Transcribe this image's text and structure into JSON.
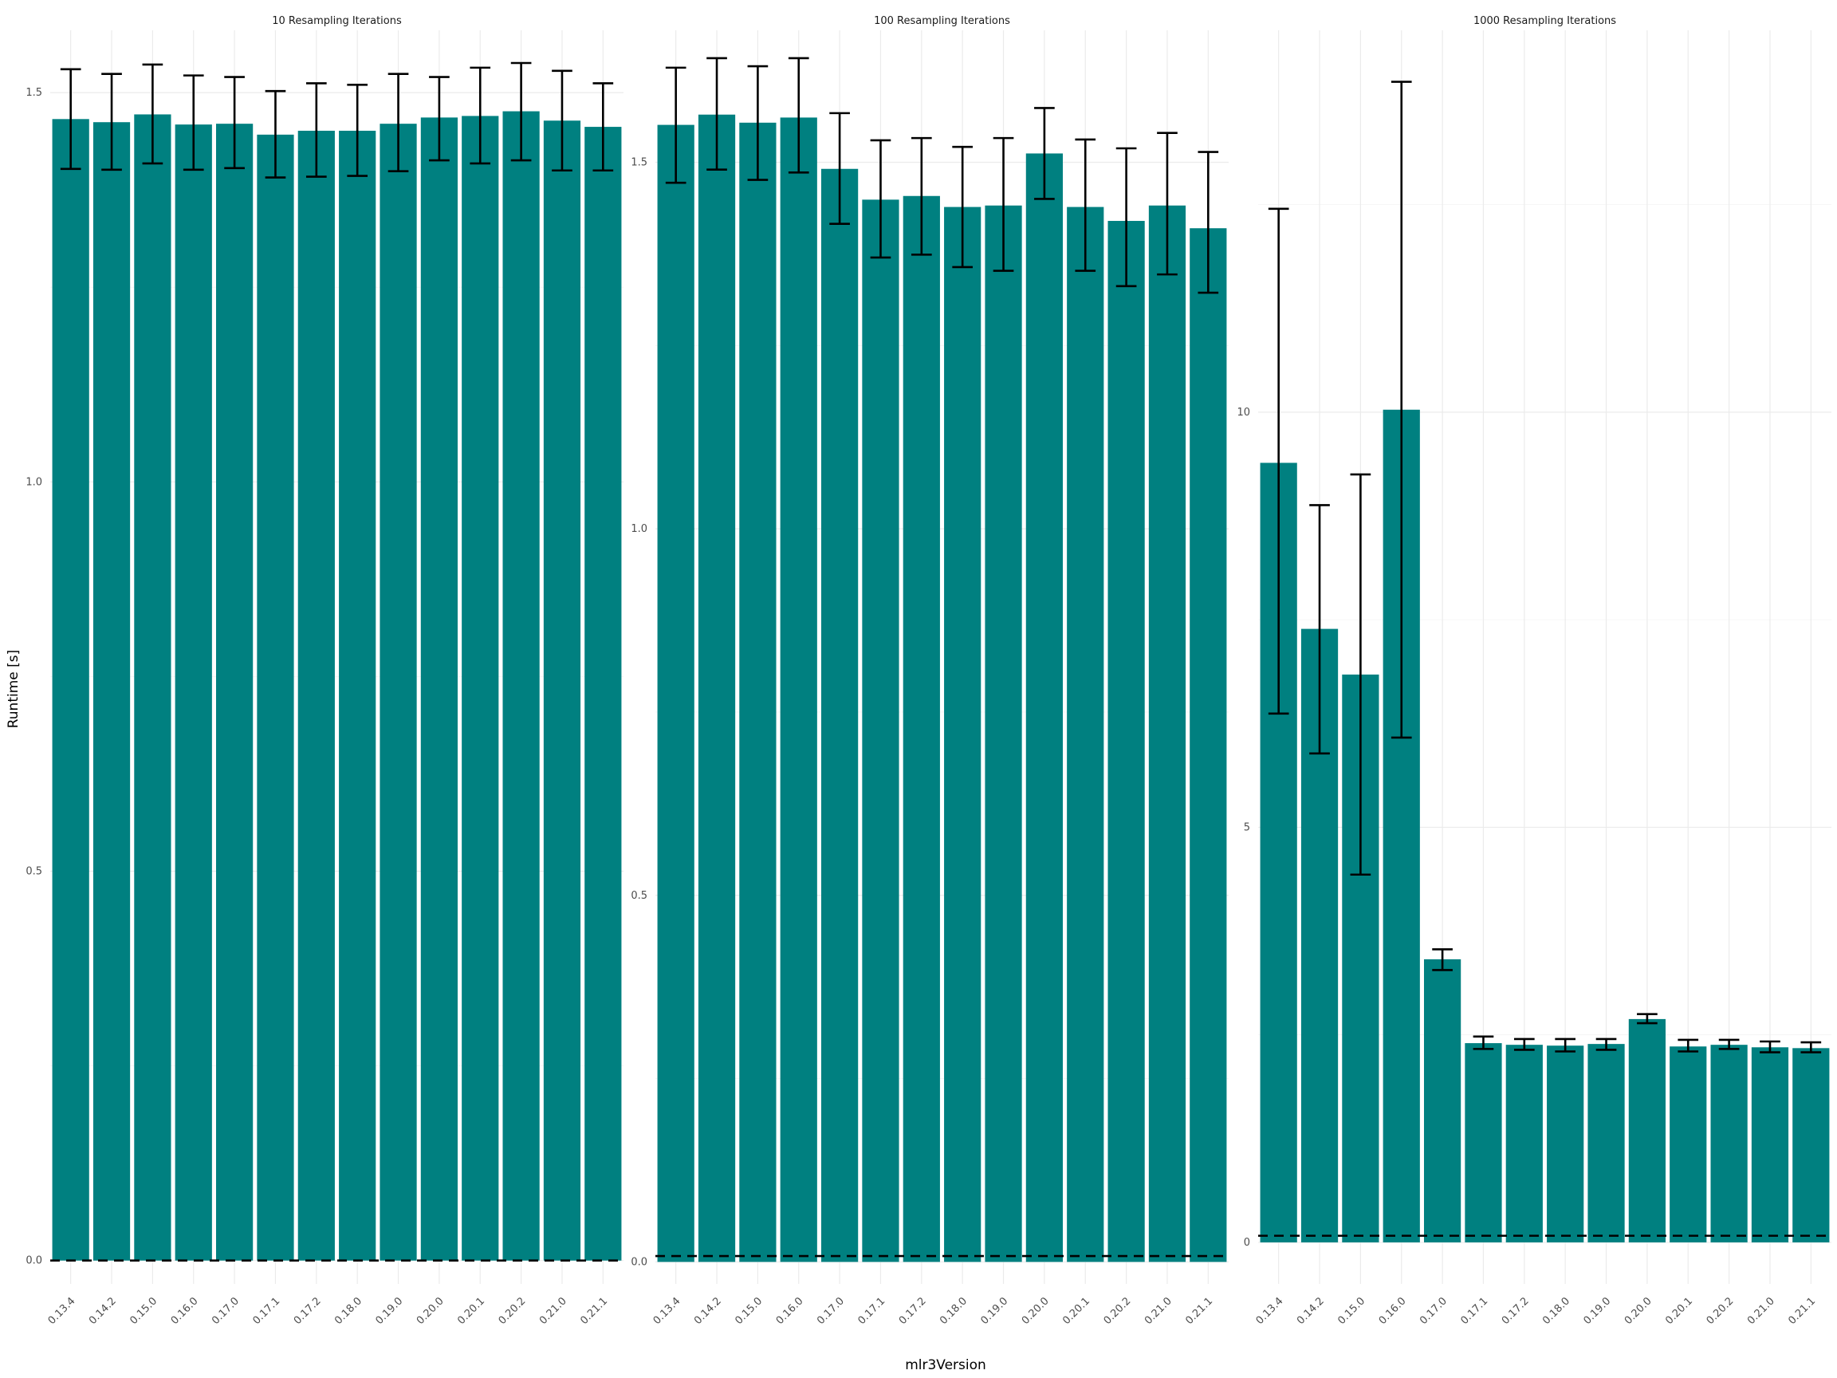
{
  "chart_data": {
    "type": "bar",
    "xlabel": "mlr3Version",
    "ylabel": "Runtime [s]",
    "colors": {
      "bar": "#008080",
      "error_bar": "#000000",
      "reference_line": "#000000"
    },
    "grid": true,
    "panels": [
      {
        "title": "10 Resampling Iterations",
        "categories": [
          "0.13.4",
          "0.14.2",
          "0.15.0",
          "0.16.0",
          "0.17.0",
          "0.17.1",
          "0.17.2",
          "0.18.0",
          "0.19.0",
          "0.20.0",
          "0.20.1",
          "0.20.2",
          "0.21.0",
          "0.21.1"
        ],
        "values": [
          1.466,
          1.462,
          1.472,
          1.459,
          1.46,
          1.446,
          1.451,
          1.451,
          1.46,
          1.468,
          1.47,
          1.476,
          1.464,
          1.456
        ],
        "error_low": [
          1.402,
          1.401,
          1.409,
          1.401,
          1.403,
          1.391,
          1.392,
          1.393,
          1.399,
          1.413,
          1.409,
          1.413,
          1.4,
          1.4
        ],
        "error_high": [
          1.53,
          1.524,
          1.536,
          1.522,
          1.52,
          1.502,
          1.512,
          1.51,
          1.524,
          1.52,
          1.532,
          1.538,
          1.528,
          1.512
        ],
        "reference": 0.0,
        "ylim": [
          -0.03,
          1.58
        ],
        "yticks": [
          0.0,
          0.5,
          1.0,
          1.5
        ],
        "ytick_labels": [
          "0.0",
          "0.5",
          "1.0",
          "1.5"
        ]
      },
      {
        "title": "100 Resampling Iterations",
        "categories": [
          "0.13.4",
          "0.14.2",
          "0.15.0",
          "0.16.0",
          "0.17.0",
          "0.17.1",
          "0.17.2",
          "0.18.0",
          "0.19.0",
          "0.20.0",
          "0.20.1",
          "0.20.2",
          "0.21.0",
          "0.21.1"
        ],
        "values": [
          1.551,
          1.565,
          1.554,
          1.561,
          1.491,
          1.449,
          1.454,
          1.439,
          1.441,
          1.512,
          1.439,
          1.42,
          1.441,
          1.41
        ],
        "error_low": [
          1.472,
          1.49,
          1.476,
          1.486,
          1.416,
          1.37,
          1.374,
          1.357,
          1.352,
          1.45,
          1.352,
          1.331,
          1.347,
          1.322
        ],
        "error_high": [
          1.629,
          1.642,
          1.631,
          1.642,
          1.567,
          1.53,
          1.533,
          1.521,
          1.533,
          1.574,
          1.531,
          1.519,
          1.54,
          1.514
        ],
        "reference": 0.008,
        "ylim": [
          -0.03,
          1.68
        ],
        "yticks": [
          0.0,
          0.5,
          1.0,
          1.5
        ],
        "ytick_labels": [
          "0.0",
          "0.5",
          "1.0",
          "1.5"
        ]
      },
      {
        "title": "1000 Resampling Iterations",
        "categories": [
          "0.13.4",
          "0.14.2",
          "0.15.0",
          "0.16.0",
          "0.17.0",
          "0.17.1",
          "0.17.2",
          "0.18.0",
          "0.19.0",
          "0.20.0",
          "0.20.1",
          "0.20.2",
          "0.21.0",
          "0.21.1"
        ],
        "values": [
          9.39,
          7.39,
          6.84,
          10.03,
          3.41,
          2.4,
          2.38,
          2.37,
          2.39,
          2.69,
          2.36,
          2.38,
          2.35,
          2.34
        ],
        "error_low": [
          6.37,
          5.89,
          4.43,
          6.08,
          3.28,
          2.33,
          2.32,
          2.3,
          2.32,
          2.64,
          2.3,
          2.33,
          2.29,
          2.29
        ],
        "error_high": [
          12.45,
          8.88,
          9.25,
          13.98,
          3.53,
          2.48,
          2.45,
          2.45,
          2.45,
          2.75,
          2.44,
          2.44,
          2.42,
          2.41
        ],
        "reference": 0.08,
        "ylim": [
          -0.5,
          14.6
        ],
        "yticks": [
          0,
          5,
          10
        ],
        "ytick_labels": [
          "0",
          "5",
          "10"
        ]
      }
    ]
  }
}
